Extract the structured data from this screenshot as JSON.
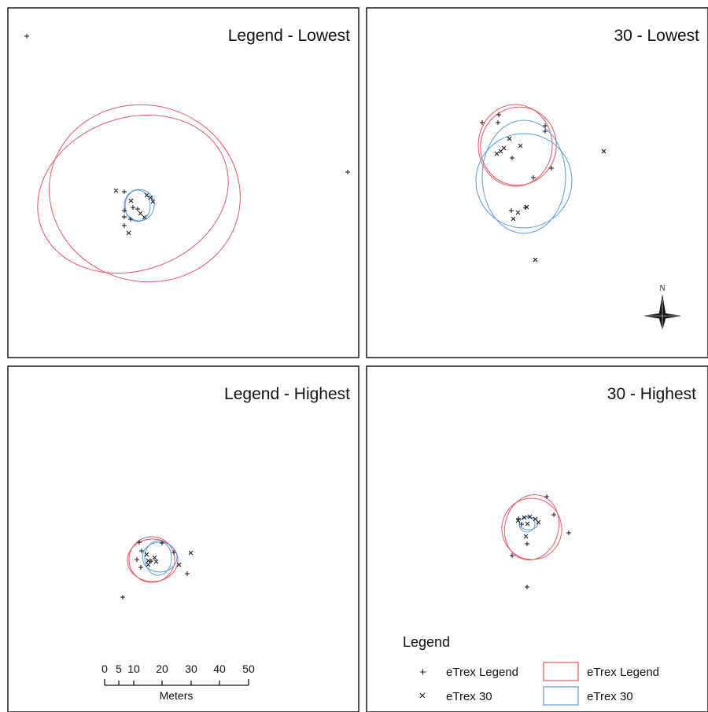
{
  "panels": [
    {
      "id": "legend-lowest",
      "title": "Legend - Lowest"
    },
    {
      "id": "30-lowest",
      "title": "30 - Lowest"
    },
    {
      "id": "legend-highest",
      "title": "Legend - Highest"
    },
    {
      "id": "30-highest",
      "title": "30 - Highest"
    }
  ],
  "legend": {
    "title": "Legend",
    "items": [
      {
        "symbol": "plus-marker",
        "label": "eTrex Legend"
      },
      {
        "symbol": "cross-marker",
        "label": "eTrex 30"
      },
      {
        "symbol": "red-ellipse-swatch",
        "label": "eTrex Legend"
      },
      {
        "symbol": "blue-ellipse-swatch",
        "label": "eTrex 30"
      }
    ]
  },
  "scale_bar": {
    "ticks": [
      "0",
      "5",
      "10",
      "20",
      "30",
      "40",
      "50"
    ],
    "unit": "Meters"
  },
  "north_arrow": {
    "label": "N"
  },
  "colors": {
    "etrex_legend_ellipse": "#e8575f",
    "etrex_30_ellipse": "#5b9be0",
    "markers": "#111111",
    "frame": "#1a1a1a"
  }
}
